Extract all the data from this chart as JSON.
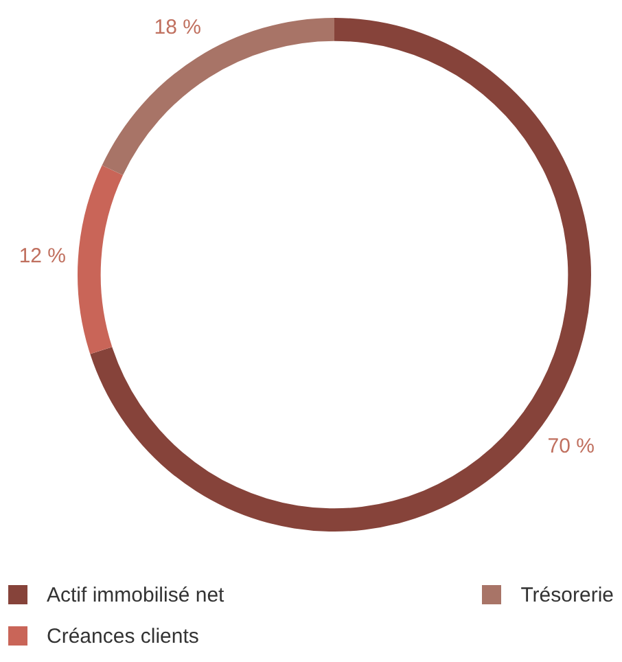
{
  "chart_data": {
    "type": "donut",
    "categories": [
      "Actif immobilisé net",
      "Créances clients",
      "Trésorerie"
    ],
    "values": [
      70,
      12,
      18
    ],
    "colors": [
      "#86433a",
      "#c96558",
      "#a87467"
    ],
    "value_labels": [
      "70 %",
      "12 %",
      "18 %"
    ],
    "legend": "bottom"
  }
}
